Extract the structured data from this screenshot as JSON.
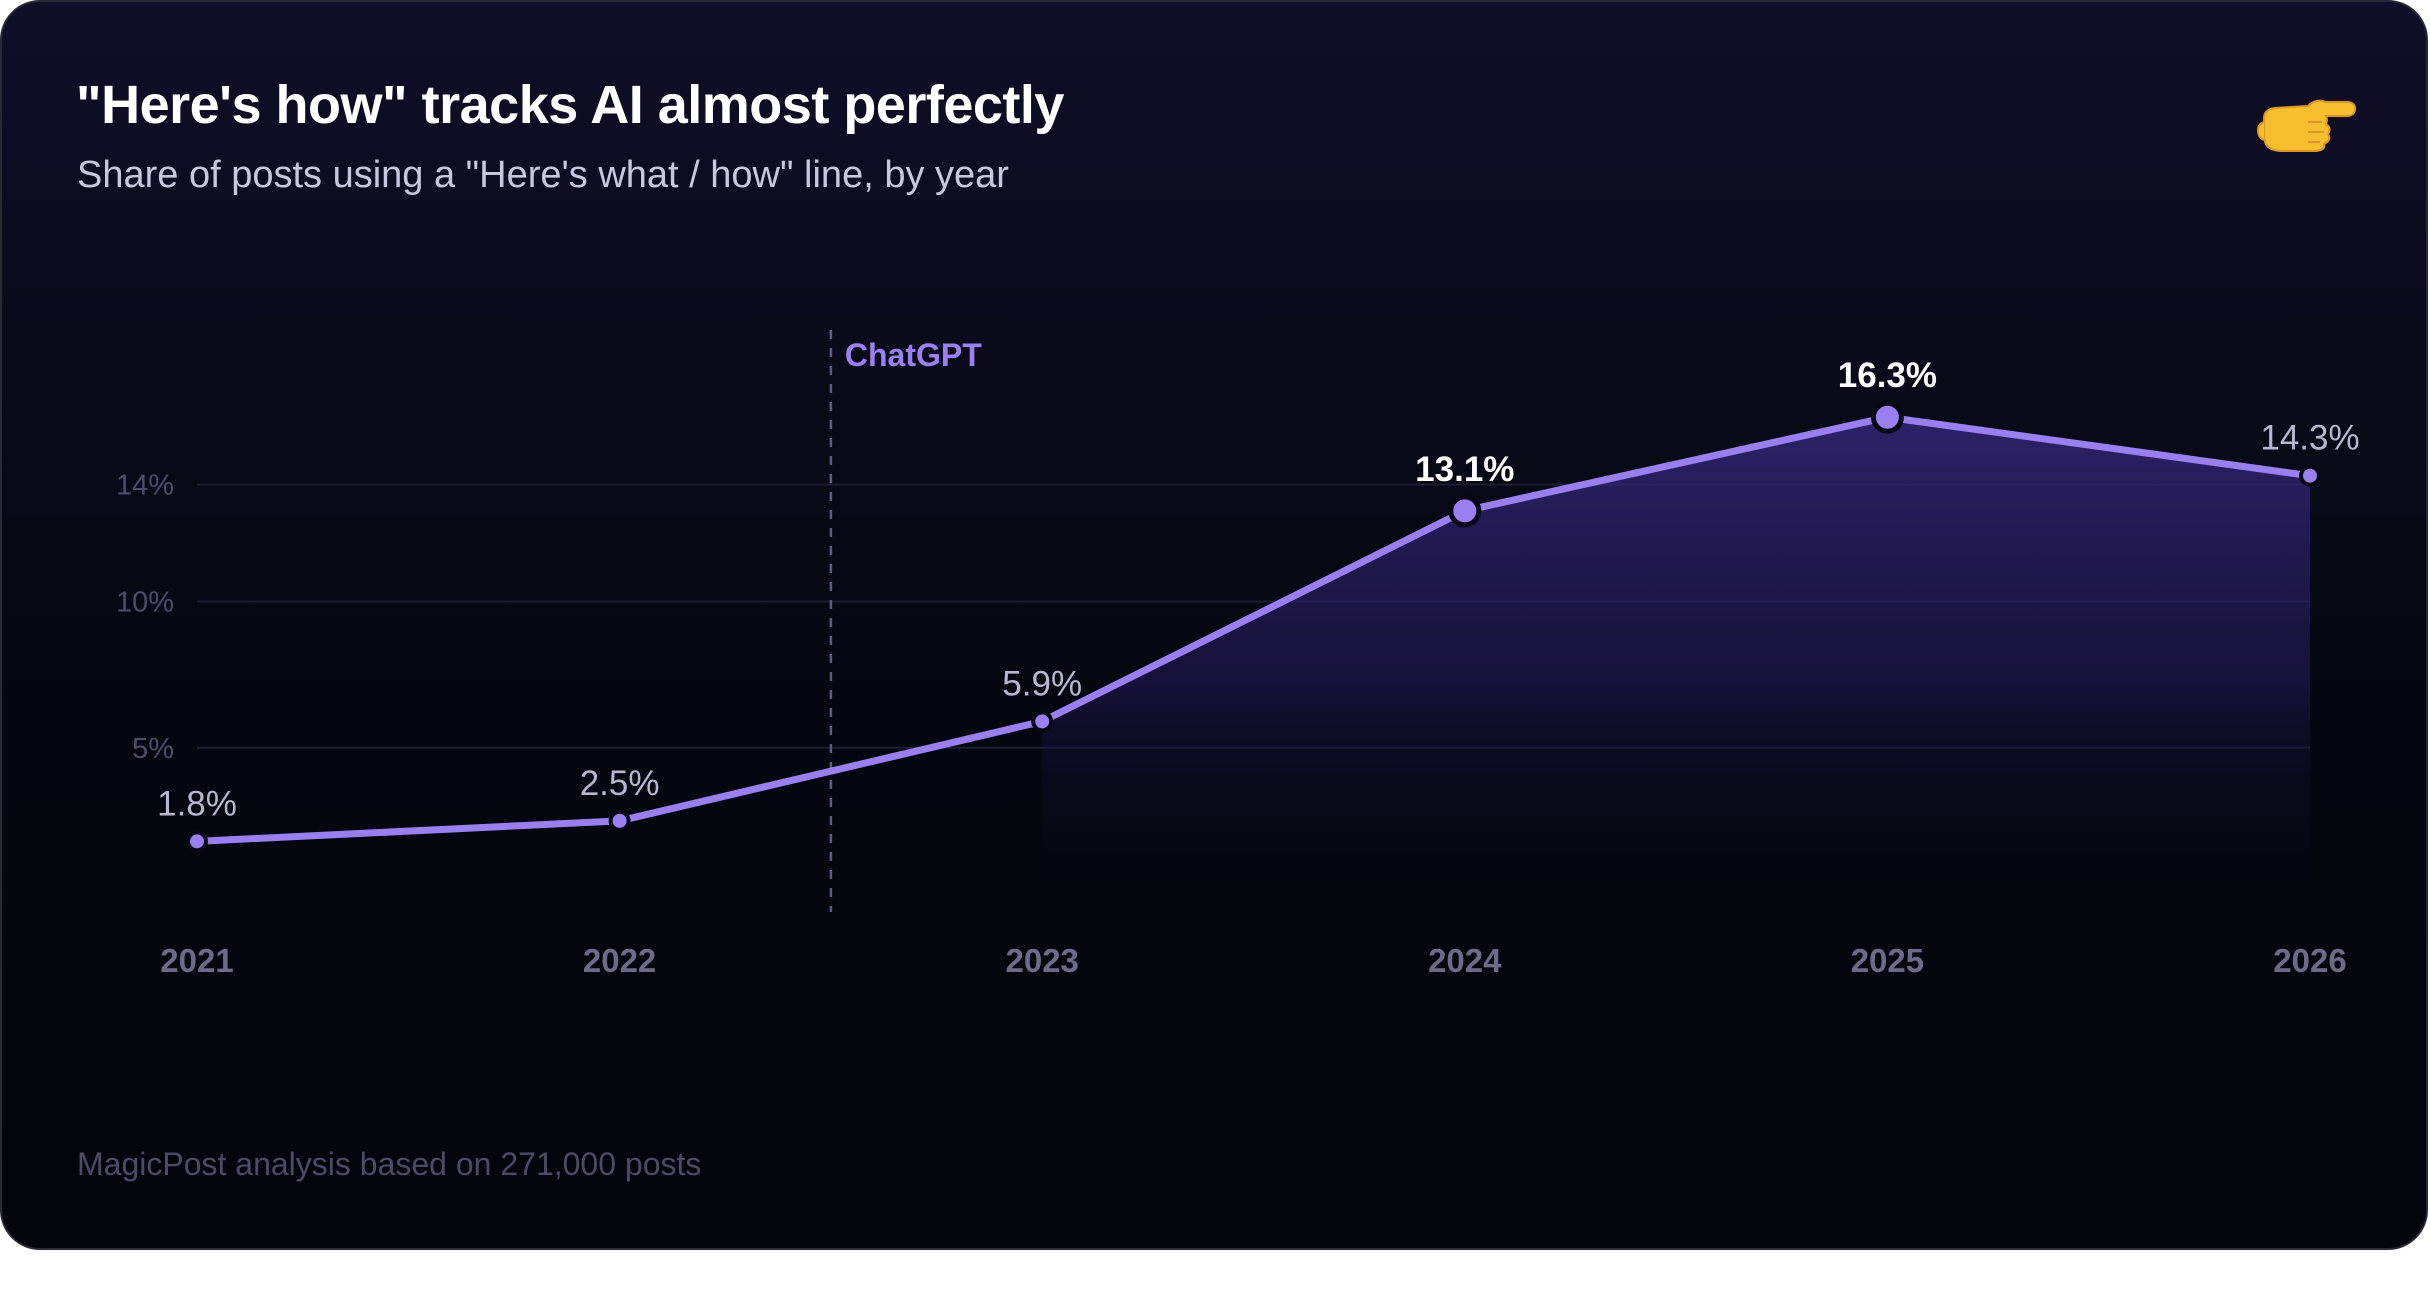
{
  "header": {
    "title": "\"Here's how\" tracks AI almost perfectly",
    "subtitle": "Share of posts using a \"Here's what / how\" line, by year",
    "icon": "pointing-hand-icon"
  },
  "footer": {
    "source": "MagicPost analysis based on 271,000 posts"
  },
  "colors": {
    "line": "#9a7ff0",
    "accent_label": "#9b80f2",
    "grid": "#1e1d34",
    "tick": "#4e4b6c"
  },
  "chart_data": {
    "type": "line",
    "title": "\"Here's how\" tracks AI almost perfectly",
    "subtitle": "Share of posts using a \"Here's what / how\" line, by year",
    "x": [
      "2021",
      "2022",
      "2023",
      "2024",
      "2025",
      "2026"
    ],
    "series": [
      {
        "values": [
          1.8,
          2.5,
          5.9,
          13.1,
          16.3,
          14.3
        ],
        "labels": [
          "1.8%",
          "2.5%",
          "5.9%",
          "13.1%",
          "16.3%",
          "14.3%"
        ]
      }
    ],
    "y_ticks": [
      {
        "value": 5,
        "label": "5%"
      },
      {
        "value": 10,
        "label": "10%"
      },
      {
        "value": 14,
        "label": "14%"
      }
    ],
    "ylim": [
      0,
      18
    ],
    "grid": true,
    "area_fill": true,
    "annotations": [
      {
        "x": 2022.5,
        "label": "ChatGPT",
        "style": "dashed-vertical-line"
      }
    ],
    "highlighted_points": [
      "2024",
      "2025"
    ]
  }
}
